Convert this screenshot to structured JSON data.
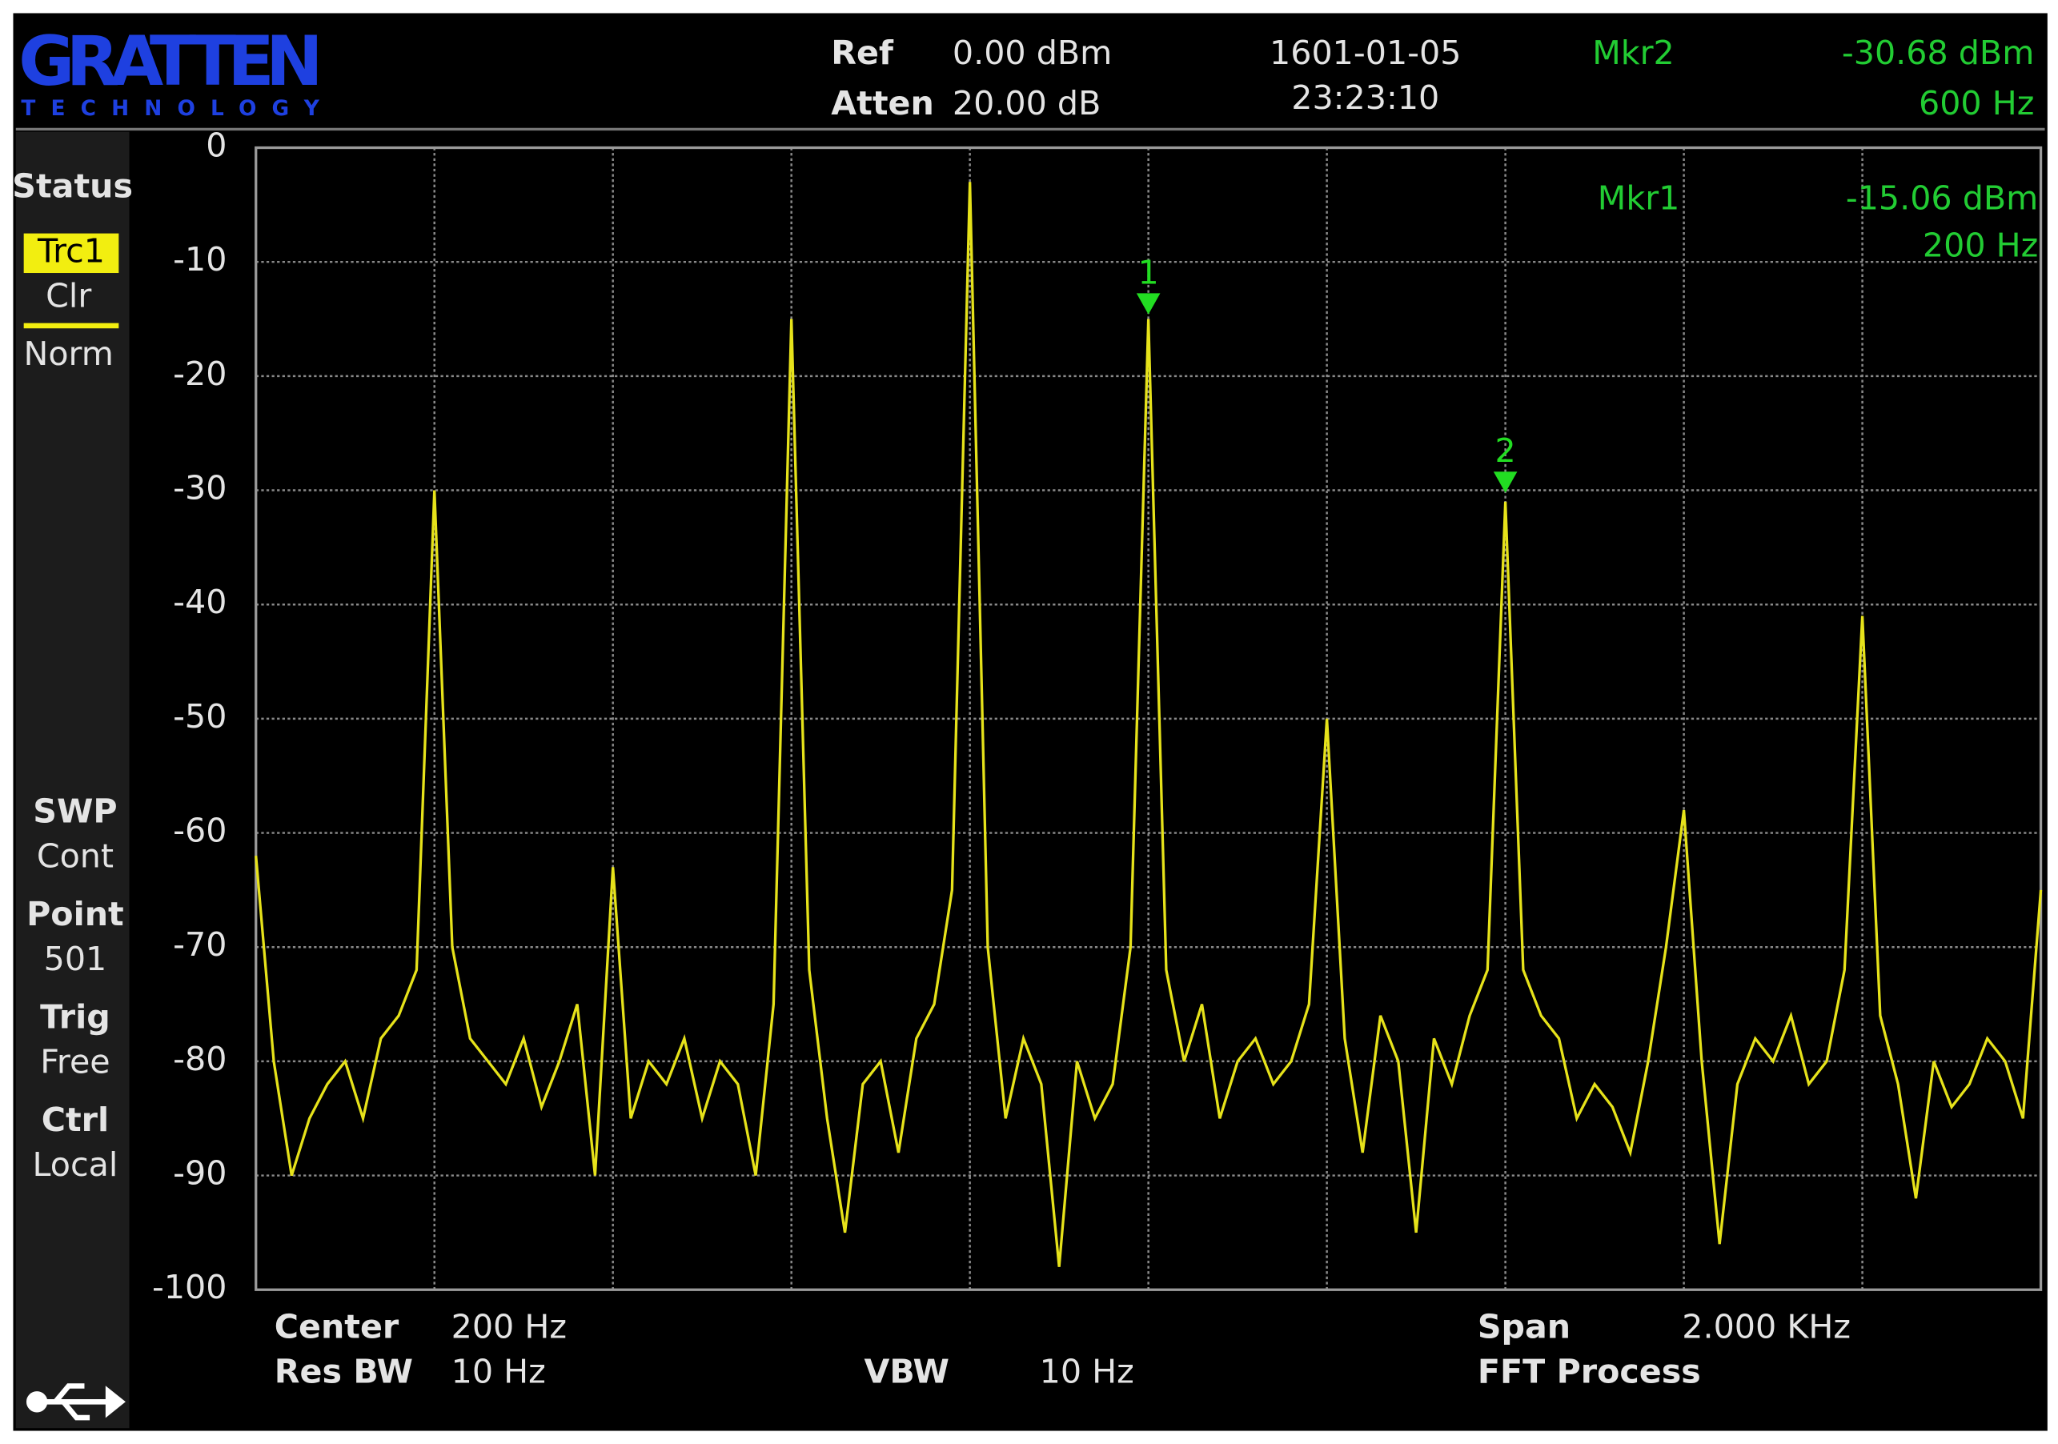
{
  "header": {
    "logo": "GRATTEN",
    "logo_sub": "TECHNOLOGY",
    "ref_label": "Ref",
    "ref_value": "0.00 dBm",
    "atten_label": "Atten",
    "atten_value": "20.00 dB",
    "date": "1601-01-05",
    "time": "23:23:10",
    "mkr2_label": "Mkr2",
    "mkr2_value": "-30.68 dBm",
    "mkr2_freq": "600 Hz"
  },
  "sidebar": {
    "status": "Status",
    "trace": "Trc1",
    "clear": "Clr",
    "mode": "Norm",
    "items": [
      {
        "label": "SWP",
        "value": "Cont"
      },
      {
        "label": "Point",
        "value": "501"
      },
      {
        "label": "Trig",
        "value": "Free"
      },
      {
        "label": "Ctrl",
        "value": "Local"
      }
    ]
  },
  "chart_data": {
    "type": "line",
    "color": "#e6e21a",
    "grid": true,
    "x": [
      -800,
      -780,
      -760,
      -740,
      -720,
      -700,
      -680,
      -660,
      -640,
      -620,
      -600,
      -580,
      -560,
      -540,
      -520,
      -500,
      -480,
      -460,
      -440,
      -420,
      -400,
      -380,
      -360,
      -340,
      -320,
      -300,
      -280,
      -260,
      -240,
      -220,
      -200,
      -180,
      -160,
      -140,
      -120,
      -100,
      -80,
      -60,
      -40,
      -20,
      0,
      20,
      40,
      60,
      80,
      100,
      120,
      140,
      160,
      180,
      200,
      220,
      240,
      260,
      280,
      300,
      320,
      340,
      360,
      380,
      400,
      420,
      440,
      460,
      480,
      500,
      520,
      540,
      560,
      580,
      600,
      620,
      640,
      660,
      680,
      700,
      720,
      740,
      760,
      780,
      800,
      820,
      840,
      860,
      880,
      900,
      920,
      940,
      960,
      980,
      1000,
      1020,
      1040,
      1060,
      1080,
      1100,
      1120,
      1140,
      1160,
      1180,
      1200
    ],
    "values": [
      -62,
      -80,
      -90,
      -85,
      -82,
      -80,
      -85,
      -78,
      -76,
      -72,
      -30,
      -70,
      -78,
      -80,
      -82,
      -78,
      -84,
      -80,
      -75,
      -90,
      -63,
      -85,
      -80,
      -82,
      -78,
      -85,
      -80,
      -82,
      -90,
      -75,
      -15,
      -72,
      -85,
      -95,
      -82,
      -80,
      -88,
      -78,
      -75,
      -65,
      -3,
      -70,
      -85,
      -78,
      -82,
      -98,
      -80,
      -85,
      -82,
      -70,
      -15,
      -72,
      -80,
      -75,
      -85,
      -80,
      -78,
      -82,
      -80,
      -75,
      -50,
      -78,
      -88,
      -76,
      -80,
      -95,
      -78,
      -82,
      -76,
      -72,
      -31,
      -72,
      -76,
      -78,
      -85,
      -82,
      -84,
      -88,
      -80,
      -70,
      -58,
      -80,
      -96,
      -82,
      -78,
      -80,
      -76,
      -82,
      -80,
      -72,
      -41,
      -76,
      -82,
      -92,
      -80,
      -84,
      -82,
      -78,
      -80,
      -85,
      -65
    ],
    "xlim": [
      -800,
      1200
    ],
    "xticks": [
      -800,
      -600,
      -400,
      -200,
      0,
      200,
      400,
      600,
      800,
      1000,
      1200
    ],
    "ylim": [
      -100,
      0
    ],
    "yticks": [
      0,
      -10,
      -20,
      -30,
      -40,
      -50,
      -60,
      -70,
      -80,
      -90,
      -100
    ],
    "markers": [
      {
        "label": "1",
        "x": 200,
        "value": -15.06,
        "color": "#22dd22"
      },
      {
        "label": "2",
        "x": 600,
        "value": -30.68,
        "color": "#22dd22"
      }
    ],
    "readout": {
      "label": "Mkr1",
      "value": "-15.06 dBm",
      "freq": "200 Hz"
    }
  },
  "footer": {
    "center_label": "Center",
    "center_value": "200 Hz",
    "rbw_label": "Res BW",
    "rbw_value": "10 Hz",
    "vbw_label": "VBW",
    "vbw_value": "10 Hz",
    "span_label": "Span",
    "span_value": "2.000 KHz",
    "process": "FFT Process"
  }
}
